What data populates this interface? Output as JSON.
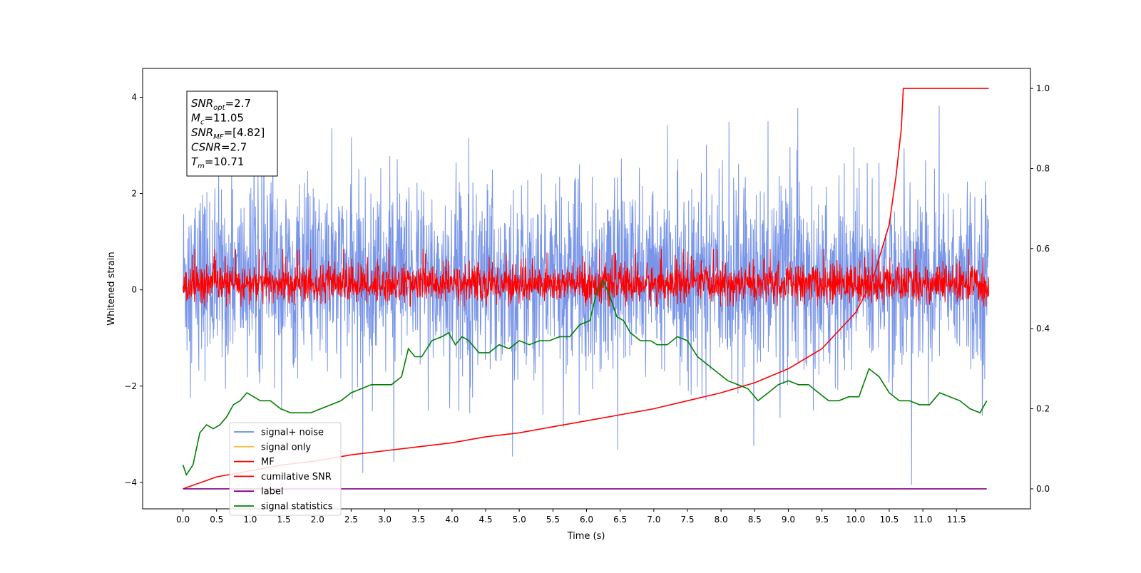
{
  "chart_data": {
    "type": "line",
    "xlabel": "Time (s)",
    "ylabel": "Whitened strain",
    "xlim": [
      -0.6,
      12.6
    ],
    "ylim": [
      -4.55,
      4.6
    ],
    "y2lim": [
      -0.05,
      1.05
    ],
    "x_ticks": [
      0.0,
      0.5,
      1.0,
      1.5,
      2.0,
      2.5,
      3.0,
      3.5,
      4.0,
      4.5,
      5.0,
      5.5,
      6.0,
      6.5,
      7.0,
      7.5,
      8.0,
      8.5,
      9.0,
      9.5,
      10.0,
      10.5,
      11.0,
      11.5
    ],
    "x_tick_labels": [
      "0.0",
      "0.5",
      "1.0",
      "1.5",
      "2.0",
      "2.5",
      "3.0",
      "3.5",
      "4.0",
      "4.5",
      "5.0",
      "5.5",
      "6.0",
      "6.5",
      "7.0",
      "7.5",
      "8.0",
      "8.5",
      "9.0",
      "9.5",
      "10.0",
      "10.5",
      "11.0",
      "11.5"
    ],
    "y_ticks": [
      -4,
      -2,
      0,
      2,
      4
    ],
    "y_tick_labels": [
      "−4",
      "−2",
      "0",
      "2",
      "4"
    ],
    "y2_ticks": [
      0.0,
      0.2,
      0.4,
      0.6,
      0.8,
      1.0
    ],
    "y2_tick_labels": [
      "0.0",
      "0.2",
      "0.4",
      "0.6",
      "0.8",
      "1.0"
    ],
    "grid": false,
    "legend_placement": "lower-left",
    "colors": {
      "signal_noise": "#6a8ae6",
      "signal_only": "#f2c14e",
      "mf": "#ff0000",
      "cumulative_snr": "#ff0000",
      "label": "#800080",
      "signal_statistics": "#008000"
    },
    "series": [
      {
        "name": "signal+ noise",
        "axis": "left",
        "note": "dense noise band approx. between -2.5 and 2.5 with spikes to about 4.2 and -4.1"
      },
      {
        "name": "signal only",
        "axis": "left"
      },
      {
        "name": "MF",
        "axis": "left",
        "note": "dense band approx. between -0.3 and 0.7"
      },
      {
        "name": "cumilative SNR",
        "axis": "right",
        "x": [
          0.0,
          0.5,
          1.0,
          1.5,
          2.0,
          2.5,
          3.0,
          3.5,
          4.0,
          4.5,
          5.0,
          5.5,
          6.0,
          6.5,
          7.0,
          7.5,
          8.0,
          8.5,
          9.0,
          9.5,
          10.0,
          10.25,
          10.5,
          10.6,
          10.68,
          10.71,
          11.0,
          11.5,
          11.98
        ],
        "values": [
          0.0,
          0.03,
          0.045,
          0.06,
          0.07,
          0.085,
          0.095,
          0.105,
          0.115,
          0.13,
          0.14,
          0.155,
          0.17,
          0.185,
          0.2,
          0.22,
          0.24,
          0.265,
          0.3,
          0.35,
          0.44,
          0.52,
          0.66,
          0.78,
          0.9,
          1.0,
          1.0,
          1.0,
          1.0
        ]
      },
      {
        "name": "label",
        "axis": "right",
        "x": [
          0.0,
          11.95
        ],
        "values": [
          0.0,
          0.0
        ]
      },
      {
        "name": "signal statistics",
        "axis": "right",
        "x": [
          0.0,
          0.05,
          0.15,
          0.25,
          0.35,
          0.45,
          0.55,
          0.65,
          0.75,
          0.85,
          0.95,
          1.05,
          1.15,
          1.3,
          1.45,
          1.6,
          1.75,
          1.9,
          2.05,
          2.2,
          2.35,
          2.5,
          2.65,
          2.8,
          2.95,
          3.1,
          3.25,
          3.35,
          3.45,
          3.55,
          3.7,
          3.85,
          3.95,
          4.05,
          4.15,
          4.25,
          4.4,
          4.55,
          4.7,
          4.85,
          5.0,
          5.15,
          5.3,
          5.45,
          5.6,
          5.75,
          5.9,
          6.05,
          6.15,
          6.25,
          6.35,
          6.45,
          6.55,
          6.65,
          6.8,
          6.95,
          7.05,
          7.2,
          7.35,
          7.5,
          7.65,
          7.8,
          7.95,
          8.1,
          8.25,
          8.4,
          8.55,
          8.7,
          8.85,
          9.0,
          9.15,
          9.3,
          9.45,
          9.6,
          9.75,
          9.9,
          10.05,
          10.2,
          10.35,
          10.5,
          10.65,
          10.8,
          10.95,
          11.1,
          11.25,
          11.4,
          11.55,
          11.7,
          11.85,
          11.95
        ],
        "values": [
          0.06,
          0.035,
          0.06,
          0.14,
          0.16,
          0.15,
          0.16,
          0.18,
          0.21,
          0.22,
          0.24,
          0.23,
          0.22,
          0.22,
          0.2,
          0.19,
          0.19,
          0.19,
          0.2,
          0.21,
          0.22,
          0.24,
          0.25,
          0.26,
          0.26,
          0.26,
          0.28,
          0.35,
          0.33,
          0.33,
          0.37,
          0.38,
          0.39,
          0.36,
          0.38,
          0.37,
          0.34,
          0.34,
          0.36,
          0.35,
          0.37,
          0.36,
          0.37,
          0.37,
          0.38,
          0.38,
          0.41,
          0.42,
          0.49,
          0.52,
          0.48,
          0.43,
          0.42,
          0.39,
          0.37,
          0.37,
          0.36,
          0.36,
          0.38,
          0.37,
          0.33,
          0.31,
          0.29,
          0.27,
          0.26,
          0.25,
          0.22,
          0.24,
          0.26,
          0.27,
          0.26,
          0.26,
          0.24,
          0.22,
          0.22,
          0.23,
          0.23,
          0.3,
          0.28,
          0.24,
          0.22,
          0.22,
          0.21,
          0.21,
          0.24,
          0.23,
          0.22,
          0.2,
          0.19,
          0.22
        ]
      }
    ],
    "legend": [
      "signal+ noise",
      "signal only",
      "MF",
      "cumilative SNR",
      "label",
      "signal statistics"
    ],
    "info_box": [
      {
        "base": "SNR",
        "sub": "opt",
        "value": "=2.7"
      },
      {
        "base": "M",
        "sub": "c",
        "value": "=11.05"
      },
      {
        "base": "SNR",
        "sub": "MF",
        "value": "=[4.82]"
      },
      {
        "base": "CSNR",
        "sub": "",
        "value": "=2.7"
      },
      {
        "base": "T",
        "sub": "m",
        "value": "=10.71"
      }
    ]
  }
}
